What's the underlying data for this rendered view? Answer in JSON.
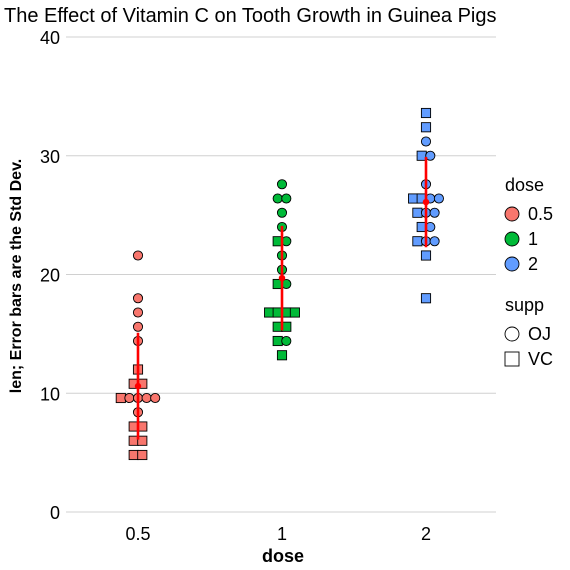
{
  "chart_data": {
    "type": "scatter",
    "title": "The Effect of Vitamin C on Tooth Growth in Guinea Pigs",
    "xlabel": "dose",
    "ylabel": "len; Error bars are the Std Dev.",
    "categories": [
      "0.5",
      "1",
      "2"
    ],
    "ylim": [
      0,
      40
    ],
    "yticks": [
      0,
      10,
      20,
      30,
      40
    ],
    "grid": "horizontal",
    "legend_position": "right",
    "legend": {
      "dose": {
        "title": "dose",
        "items": [
          {
            "label": "0.5",
            "color": "#F8766D"
          },
          {
            "label": "1",
            "color": "#00BA38"
          },
          {
            "label": "2",
            "color": "#619CFF"
          }
        ]
      },
      "supp": {
        "title": "supp",
        "items": [
          {
            "label": "OJ",
            "shape": "circle"
          },
          {
            "label": "VC",
            "shape": "square"
          }
        ]
      }
    },
    "points": [
      {
        "dose": "0.5",
        "supp": "OJ",
        "len": [
          15.2,
          21.5,
          17.6,
          9.7,
          14.5,
          10.0,
          8.2,
          9.4,
          16.5,
          9.7
        ]
      },
      {
        "dose": "0.5",
        "supp": "VC",
        "len": [
          4.2,
          11.5,
          7.3,
          5.8,
          6.4,
          10.0,
          11.2,
          11.2,
          5.2,
          7.0
        ]
      },
      {
        "dose": "1",
        "supp": "OJ",
        "len": [
          19.7,
          23.3,
          23.6,
          26.4,
          20.0,
          25.2,
          25.8,
          21.2,
          14.5,
          27.3
        ]
      },
      {
        "dose": "1",
        "supp": "VC",
        "len": [
          16.5,
          16.5,
          15.2,
          17.3,
          22.5,
          17.3,
          13.6,
          14.5,
          18.8,
          15.5
        ]
      },
      {
        "dose": "2",
        "supp": "OJ",
        "len": [
          25.5,
          26.4,
          22.4,
          24.5,
          24.8,
          30.9,
          26.4,
          27.3,
          29.4,
          23.0
        ]
      },
      {
        "dose": "2",
        "supp": "VC",
        "len": [
          23.6,
          18.5,
          33.9,
          25.5,
          26.4,
          32.5,
          26.7,
          21.5,
          23.3,
          29.5
        ]
      }
    ],
    "summary": [
      {
        "dose": "0.5",
        "mean": 10.6,
        "sd": 4.5
      },
      {
        "dose": "1",
        "mean": 19.7,
        "sd": 4.4
      },
      {
        "dose": "2",
        "mean": 26.1,
        "sd": 3.8
      }
    ],
    "summary_color": "#FF0000"
  }
}
